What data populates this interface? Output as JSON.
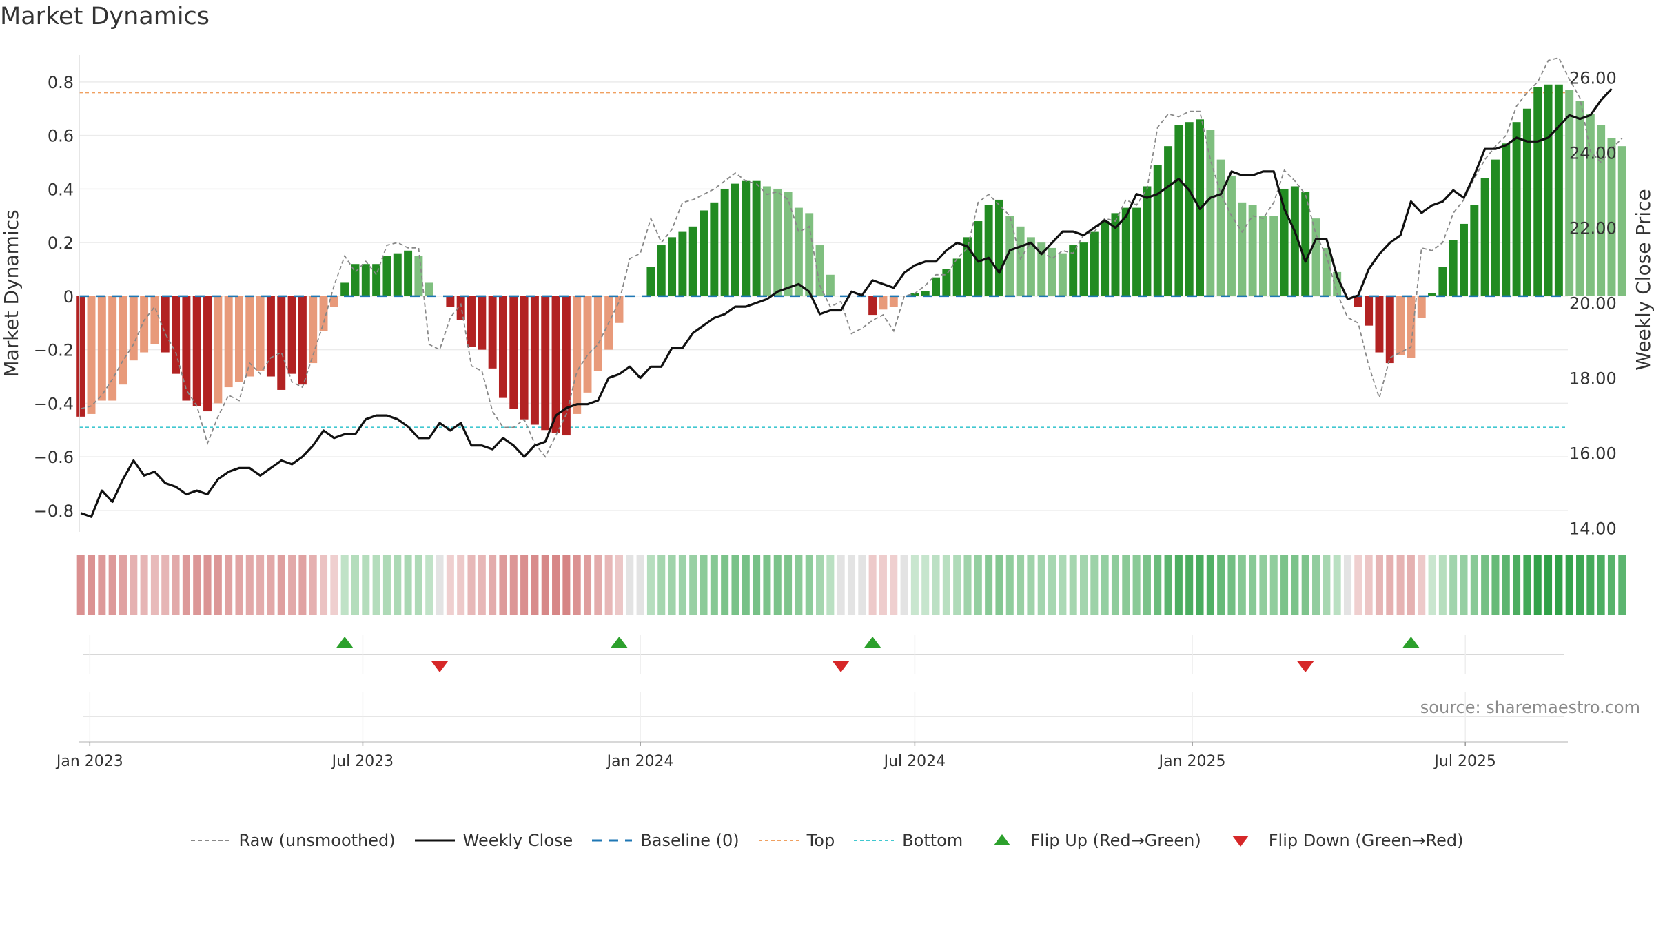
{
  "title": "Market Dynamics",
  "source": "source: sharemaestro.com",
  "colors": {
    "strong_green": "#228b22",
    "light_green": "#7fbf7f",
    "strong_red": "#b22222",
    "light_red": "#e89a7a",
    "weekly_close": "#111111",
    "raw": "#888888",
    "baseline": "#1f77b4",
    "top": "#f0a060",
    "bottom": "#40c8d0",
    "flip_up": "#2ca02c",
    "flip_down": "#d62728"
  },
  "legend": [
    {
      "key": "raw",
      "label": "Raw (unsmoothed)",
      "icon": "dashed-gray-line"
    },
    {
      "key": "weekly",
      "label": "Weekly Close",
      "icon": "solid-black-line"
    },
    {
      "key": "baseline",
      "label": "Baseline (0)",
      "icon": "dashed-blue-line"
    },
    {
      "key": "top",
      "label": "Top",
      "icon": "dotted-orange-line"
    },
    {
      "key": "bottom",
      "label": "Bottom",
      "icon": "dotted-cyan-line"
    },
    {
      "key": "flip_up",
      "label": "Flip Up (Red→Green)",
      "icon": "green-up-triangle"
    },
    {
      "key": "flip_down",
      "label": "Flip Down (Green→Red)",
      "icon": "red-down-triangle"
    }
  ],
  "chart_data": {
    "type": "bar",
    "title": "Market Dynamics",
    "ylabel": "Market Dynamics",
    "y2label": "Weekly Close Price",
    "ylim": [
      -0.88,
      0.9
    ],
    "y2lim": [
      13.9,
      26.6
    ],
    "yticks": [
      -0.8,
      -0.6,
      -0.4,
      -0.2,
      0,
      0.2,
      0.4,
      0.6,
      0.8
    ],
    "ytick_labels": [
      "−0.8",
      "−0.6",
      "−0.4",
      "−0.2",
      "0",
      "0.2",
      "0.4",
      "0.6",
      "0.8"
    ],
    "y2ticks": [
      14,
      16,
      18,
      20,
      22,
      24,
      26
    ],
    "y2tick_labels": [
      "14.00",
      "16.00",
      "18.00",
      "20.00",
      "22.00",
      "24.00",
      "26.00"
    ],
    "xlim": [
      "2022-12-25",
      "2025-09-07"
    ],
    "xticks": [
      "2023-01-01",
      "2023-07-01",
      "2024-01-01",
      "2024-07-01",
      "2025-01-01",
      "2025-07-01"
    ],
    "xtick_labels": [
      "Jan 2023",
      "Jul 2023",
      "Jan 2024",
      "Jul 2024",
      "Jan 2025",
      "Jul 2025"
    ],
    "x_start": "2022-12-26",
    "x_step_days": 7,
    "top_line": 0.76,
    "bottom_line": -0.49,
    "baseline": 0,
    "grid": true,
    "legend_position": "bottom",
    "series": [
      {
        "name": "Market Dynamics",
        "kind": "bar",
        "values": [
          -0.45,
          -0.44,
          -0.39,
          -0.39,
          -0.33,
          -0.24,
          -0.21,
          -0.18,
          -0.21,
          -0.29,
          -0.39,
          -0.41,
          -0.43,
          -0.4,
          -0.34,
          -0.32,
          -0.3,
          -0.28,
          -0.3,
          -0.35,
          -0.29,
          -0.33,
          -0.25,
          -0.13,
          -0.04,
          0.05,
          0.12,
          0.12,
          0.12,
          0.15,
          0.16,
          0.17,
          0.15,
          0.05,
          0.0,
          -0.04,
          -0.09,
          -0.19,
          -0.2,
          -0.27,
          -0.38,
          -0.42,
          -0.46,
          -0.48,
          -0.5,
          -0.51,
          -0.52,
          -0.44,
          -0.36,
          -0.28,
          -0.2,
          -0.1,
          0.0,
          0.0,
          0.11,
          0.19,
          0.22,
          0.24,
          0.26,
          0.32,
          0.35,
          0.4,
          0.42,
          0.43,
          0.43,
          0.41,
          0.4,
          0.39,
          0.33,
          0.31,
          0.19,
          0.08,
          0.0,
          0.0,
          0.0,
          -0.07,
          -0.05,
          -0.04,
          0.0,
          0.01,
          0.02,
          0.07,
          0.1,
          0.14,
          0.22,
          0.28,
          0.34,
          0.36,
          0.3,
          0.26,
          0.22,
          0.2,
          0.18,
          0.16,
          0.19,
          0.2,
          0.24,
          0.28,
          0.31,
          0.33,
          0.33,
          0.41,
          0.49,
          0.56,
          0.64,
          0.65,
          0.66,
          0.62,
          0.51,
          0.45,
          0.35,
          0.34,
          0.3,
          0.3,
          0.4,
          0.41,
          0.39,
          0.29,
          0.18,
          0.09,
          0.0,
          -0.04,
          -0.11,
          -0.21,
          -0.25,
          -0.22,
          -0.23,
          -0.08,
          0.01,
          0.11,
          0.21,
          0.27,
          0.34,
          0.44,
          0.51,
          0.57,
          0.65,
          0.7,
          0.78,
          0.79,
          0.79,
          0.77,
          0.73,
          0.68,
          0.64,
          0.59,
          0.56
        ],
        "colors": [
          "SR",
          "LR",
          "LR",
          "LR",
          "LR",
          "LR",
          "LR",
          "LR",
          "SR",
          "SR",
          "SR",
          "SR",
          "SR",
          "LR",
          "LR",
          "LR",
          "LR",
          "LR",
          "SR",
          "SR",
          "SR",
          "SR",
          "LR",
          "LR",
          "LR",
          "SG",
          "SG",
          "SG",
          "SG",
          "SG",
          "SG",
          "SG",
          "LG",
          "LG",
          "LG",
          "SR",
          "SR",
          "SR",
          "SR",
          "SR",
          "SR",
          "SR",
          "SR",
          "SR",
          "SR",
          "SR",
          "SR",
          "LR",
          "LR",
          "LR",
          "LR",
          "LR",
          "LR",
          "LR",
          "SG",
          "SG",
          "SG",
          "SG",
          "SG",
          "SG",
          "SG",
          "SG",
          "SG",
          "SG",
          "SG",
          "LG",
          "LG",
          "LG",
          "LG",
          "LG",
          "LG",
          "LG",
          "LG",
          "LG",
          "LG",
          "SR",
          "LR",
          "LR",
          "LR",
          "SG",
          "SG",
          "SG",
          "SG",
          "SG",
          "SG",
          "SG",
          "SG",
          "SG",
          "LG",
          "LG",
          "LG",
          "LG",
          "LG",
          "LG",
          "SG",
          "SG",
          "SG",
          "SG",
          "SG",
          "SG",
          "SG",
          "SG",
          "SG",
          "SG",
          "SG",
          "SG",
          "SG",
          "LG",
          "LG",
          "LG",
          "LG",
          "LG",
          "LG",
          "LG",
          "SG",
          "SG",
          "SG",
          "LG",
          "LG",
          "LG",
          "LG",
          "SR",
          "SR",
          "SR",
          "SR",
          "LR",
          "LR",
          "LR",
          "SG",
          "SG",
          "SG",
          "SG",
          "SG",
          "SG",
          "SG",
          "SG",
          "SG",
          "SG",
          "SG",
          "SG",
          "SG",
          "LG",
          "LG",
          "LG",
          "LG",
          "LG",
          "LG"
        ]
      },
      {
        "name": "Raw (unsmoothed)",
        "kind": "line",
        "axis": "left",
        "values": [
          -0.42,
          -0.41,
          -0.37,
          -0.31,
          -0.24,
          -0.18,
          -0.09,
          -0.04,
          -0.14,
          -0.21,
          -0.35,
          -0.41,
          -0.55,
          -0.45,
          -0.37,
          -0.39,
          -0.25,
          -0.29,
          -0.23,
          -0.21,
          -0.32,
          -0.34,
          -0.22,
          -0.1,
          0.04,
          0.15,
          0.09,
          0.13,
          0.08,
          0.19,
          0.2,
          0.18,
          0.18,
          -0.18,
          -0.2,
          -0.08,
          -0.03,
          -0.26,
          -0.28,
          -0.43,
          -0.49,
          -0.49,
          -0.46,
          -0.55,
          -0.6,
          -0.52,
          -0.44,
          -0.28,
          -0.22,
          -0.18,
          -0.1,
          -0.02,
          0.14,
          0.16,
          0.29,
          0.2,
          0.25,
          0.35,
          0.36,
          0.38,
          0.4,
          0.43,
          0.46,
          0.43,
          0.42,
          0.38,
          0.39,
          0.36,
          0.24,
          0.26,
          0.04,
          -0.04,
          -0.02,
          -0.14,
          -0.12,
          -0.09,
          -0.07,
          -0.13,
          0.0,
          0.01,
          0.04,
          0.08,
          0.08,
          0.14,
          0.18,
          0.35,
          0.38,
          0.34,
          0.3,
          0.14,
          0.2,
          0.17,
          0.14,
          0.17,
          0.16,
          0.23,
          0.24,
          0.29,
          0.28,
          0.36,
          0.34,
          0.4,
          0.63,
          0.68,
          0.67,
          0.69,
          0.69,
          0.51,
          0.38,
          0.3,
          0.24,
          0.3,
          0.29,
          0.35,
          0.47,
          0.43,
          0.38,
          0.23,
          0.15,
          0.01,
          -0.08,
          -0.1,
          -0.26,
          -0.38,
          -0.23,
          -0.21,
          -0.19,
          0.18,
          0.17,
          0.2,
          0.31,
          0.36,
          0.44,
          0.51,
          0.56,
          0.6,
          0.71,
          0.76,
          0.8,
          0.88,
          0.89,
          0.81,
          0.74,
          0.54,
          0.5,
          0.55,
          0.59
        ]
      },
      {
        "name": "Weekly Close",
        "kind": "line",
        "axis": "right",
        "values": [
          14.4,
          14.3,
          15.0,
          14.7,
          15.3,
          15.8,
          15.4,
          15.5,
          15.2,
          15.1,
          14.9,
          15.0,
          14.9,
          15.3,
          15.5,
          15.6,
          15.6,
          15.4,
          15.6,
          15.8,
          15.7,
          15.9,
          16.2,
          16.6,
          16.4,
          16.5,
          16.5,
          16.9,
          17.0,
          17.0,
          16.9,
          16.7,
          16.4,
          16.4,
          16.8,
          16.6,
          16.8,
          16.2,
          16.2,
          16.1,
          16.4,
          16.2,
          15.9,
          16.2,
          16.3,
          17.0,
          17.2,
          17.3,
          17.3,
          17.4,
          18.0,
          18.1,
          18.3,
          18.0,
          18.3,
          18.3,
          18.8,
          18.8,
          19.2,
          19.4,
          19.6,
          19.7,
          19.9,
          19.9,
          20.0,
          20.1,
          20.3,
          20.4,
          20.5,
          20.3,
          19.7,
          19.8,
          19.8,
          20.3,
          20.2,
          20.6,
          20.5,
          20.4,
          20.8,
          21.0,
          21.1,
          21.1,
          21.4,
          21.6,
          21.5,
          21.1,
          21.2,
          20.8,
          21.4,
          21.5,
          21.6,
          21.3,
          21.6,
          21.9,
          21.9,
          21.8,
          22.0,
          22.2,
          22.0,
          22.3,
          22.9,
          22.8,
          22.9,
          23.1,
          23.3,
          23.0,
          22.5,
          22.8,
          22.9,
          23.5,
          23.4,
          23.4,
          23.5,
          23.5,
          22.5,
          21.9,
          21.1,
          21.7,
          21.7,
          20.7,
          20.1,
          20.2,
          20.9,
          21.3,
          21.6,
          21.8,
          22.7,
          22.4,
          22.6,
          22.7,
          23.0,
          22.8,
          23.4,
          24.1,
          24.1,
          24.2,
          24.4,
          24.3,
          24.3,
          24.4,
          24.7,
          25.0,
          24.9,
          25.0,
          25.4,
          25.7
        ]
      }
    ],
    "flip_up": [
      "2023-06-19",
      "2023-12-18",
      "2024-06-03",
      "2025-05-26"
    ],
    "flip_down": [
      "2023-08-21",
      "2024-05-13",
      "2025-03-17"
    ],
    "heat_strip": {
      "values": [
        -0.45,
        -0.44,
        -0.39,
        -0.39,
        -0.33,
        -0.24,
        -0.21,
        -0.18,
        -0.21,
        -0.29,
        -0.39,
        -0.41,
        -0.43,
        -0.4,
        -0.34,
        -0.32,
        -0.3,
        -0.28,
        -0.3,
        -0.35,
        -0.29,
        -0.33,
        -0.25,
        -0.13,
        -0.04,
        0.05,
        0.12,
        0.12,
        0.12,
        0.15,
        0.16,
        0.17,
        0.15,
        0.05,
        0.0,
        -0.04,
        -0.09,
        -0.19,
        -0.2,
        -0.27,
        -0.38,
        -0.42,
        -0.46,
        -0.48,
        -0.5,
        -0.51,
        -0.52,
        -0.44,
        -0.36,
        -0.28,
        -0.2,
        -0.1,
        0.0,
        0.0,
        0.11,
        0.19,
        0.22,
        0.24,
        0.26,
        0.32,
        0.35,
        0.4,
        0.42,
        0.43,
        0.43,
        0.41,
        0.4,
        0.39,
        0.33,
        0.31,
        0.19,
        0.08,
        0.0,
        0.0,
        0.0,
        -0.07,
        -0.05,
        -0.04,
        0.0,
        0.01,
        0.02,
        0.07,
        0.1,
        0.14,
        0.22,
        0.28,
        0.34,
        0.36,
        0.3,
        0.26,
        0.22,
        0.2,
        0.18,
        0.16,
        0.19,
        0.2,
        0.24,
        0.28,
        0.31,
        0.33,
        0.33,
        0.41,
        0.49,
        0.56,
        0.64,
        0.65,
        0.66,
        0.62,
        0.51,
        0.45,
        0.35,
        0.34,
        0.3,
        0.3,
        0.4,
        0.41,
        0.39,
        0.29,
        0.18,
        0.09,
        0.0,
        -0.04,
        -0.11,
        -0.21,
        -0.25,
        -0.22,
        -0.23,
        -0.08,
        0.01,
        0.11,
        0.21,
        0.27,
        0.34,
        0.44,
        0.51,
        0.57,
        0.65,
        0.7,
        0.78,
        0.79,
        0.79,
        0.77,
        0.73,
        0.68,
        0.64,
        0.59,
        0.56
      ]
    }
  }
}
